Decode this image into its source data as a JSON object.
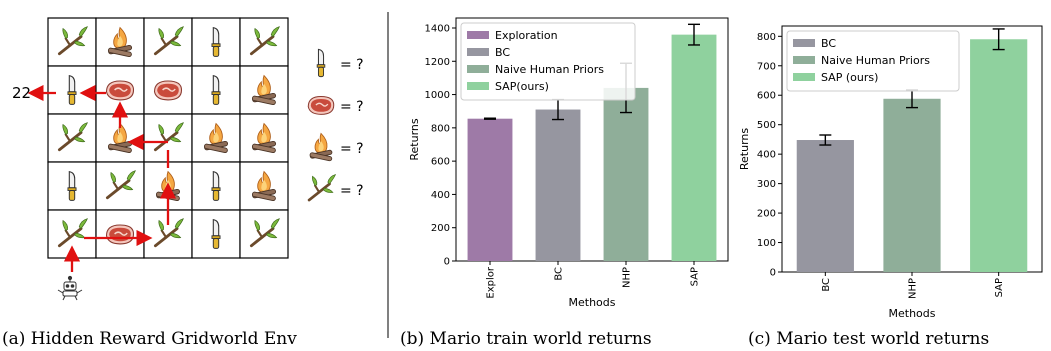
{
  "panel_a": {
    "caption": "(a) Hidden Reward Gridworld Env",
    "reward_label": "22",
    "grid": [
      [
        "stick",
        "campfire",
        "stick",
        "knife",
        "stick"
      ],
      [
        "knife",
        "meat",
        "meat",
        "knife",
        "campfire"
      ],
      [
        "stick",
        "campfire",
        "stick",
        "campfire",
        "campfire"
      ],
      [
        "knife",
        "stick",
        "campfire",
        "knife",
        "campfire"
      ],
      [
        "stick",
        "meat",
        "stick",
        "knife",
        "stick"
      ]
    ],
    "legend": [
      {
        "icon": "knife-icon",
        "label": "= ?"
      },
      {
        "icon": "meat-icon",
        "label": "= ?"
      },
      {
        "icon": "campfire-icon",
        "label": "= ?"
      },
      {
        "icon": "stick-icon",
        "label": "= ?"
      }
    ],
    "colors": {
      "arrow": "#e01010",
      "grid": "#000000"
    }
  },
  "chart_data": [
    {
      "type": "bar",
      "caption": "(b) Mario train world returns",
      "categories": [
        "Explor",
        "BC",
        "NHP",
        "SAP"
      ],
      "values": [
        855,
        910,
        1040,
        1360
      ],
      "errors": [
        3,
        60,
        148,
        62
      ],
      "colors": [
        "#9e7aa7",
        "#9696a0",
        "#8fae99",
        "#8fd19e"
      ],
      "legend": [
        "Exploration",
        "BC",
        "Naive Human Priors",
        "SAP(ours)"
      ],
      "legend_placement": "top-left",
      "yticks": [
        0,
        200,
        400,
        600,
        800,
        1000,
        1200,
        1400
      ],
      "ylim": [
        0,
        1460
      ],
      "xlabel": "Methods",
      "ylabel": "Returns",
      "grid": false
    },
    {
      "type": "bar",
      "caption": "(c) Mario test world returns",
      "categories": [
        "BC",
        "NHP",
        "SAP"
      ],
      "values": [
        448,
        588,
        790
      ],
      "errors": [
        17,
        30,
        35
      ],
      "colors": [
        "#9696a0",
        "#8fae99",
        "#8fd19e"
      ],
      "legend": [
        "BC",
        "Naive Human Priors",
        "SAP (ours)"
      ],
      "legend_placement": "top-left",
      "yticks": [
        0,
        100,
        200,
        300,
        400,
        500,
        600,
        700,
        800
      ],
      "ylim": [
        0,
        835
      ],
      "xlabel": "Methods",
      "ylabel": "Returns",
      "grid": false
    }
  ]
}
